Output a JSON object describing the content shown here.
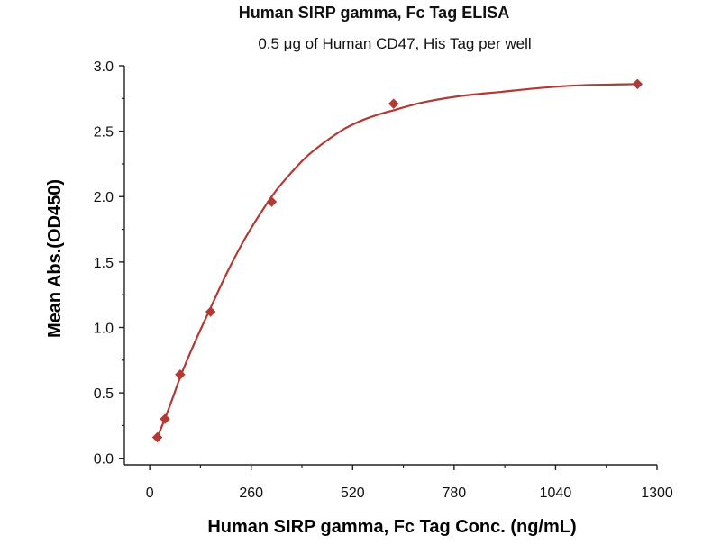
{
  "chart_data": {
    "type": "scatter",
    "title": "Human SIRP gamma, Fc Tag ELISA",
    "subtitle": "0.5 μg of Human CD47, His Tag per well",
    "xlabel": "Human SIRP gamma, Fc Tag Conc. (ng/mL)",
    "ylabel": "Mean Abs.(OD450)",
    "xlim": [
      -65,
      1300
    ],
    "ylim": [
      -0.05,
      3.0
    ],
    "xticks": [
      0,
      260,
      520,
      780,
      1040,
      1300
    ],
    "yticks": [
      0.0,
      0.5,
      1.0,
      1.5,
      2.0,
      2.5,
      3.0
    ],
    "xtick_labels": [
      "0",
      "260",
      "520",
      "780",
      "1040",
      "1300"
    ],
    "ytick_labels": [
      "0.0",
      "0.5",
      "1.0",
      "1.5",
      "2.0",
      "2.5",
      "3.0"
    ],
    "grid": false,
    "legend": "none",
    "series": [
      {
        "marker": "diamond",
        "color": "#b33a33",
        "x": [
          19.5,
          39,
          78,
          156,
          312.5,
          625,
          1250
        ],
        "y": [
          0.16,
          0.3,
          0.64,
          1.12,
          1.96,
          2.71,
          2.86
        ]
      }
    ],
    "fit_curve": {
      "color": "#b33a33",
      "x": [
        19.5,
        40,
        60,
        78,
        100,
        125,
        156,
        200,
        250,
        312.5,
        350,
        400,
        450,
        500,
        550,
        600,
        625,
        700,
        800,
        900,
        1000,
        1100,
        1250
      ],
      "y": [
        0.16,
        0.31,
        0.47,
        0.62,
        0.78,
        0.95,
        1.15,
        1.43,
        1.71,
        2.0,
        2.14,
        2.3,
        2.42,
        2.52,
        2.59,
        2.64,
        2.66,
        2.72,
        2.77,
        2.8,
        2.83,
        2.85,
        2.86
      ]
    }
  }
}
